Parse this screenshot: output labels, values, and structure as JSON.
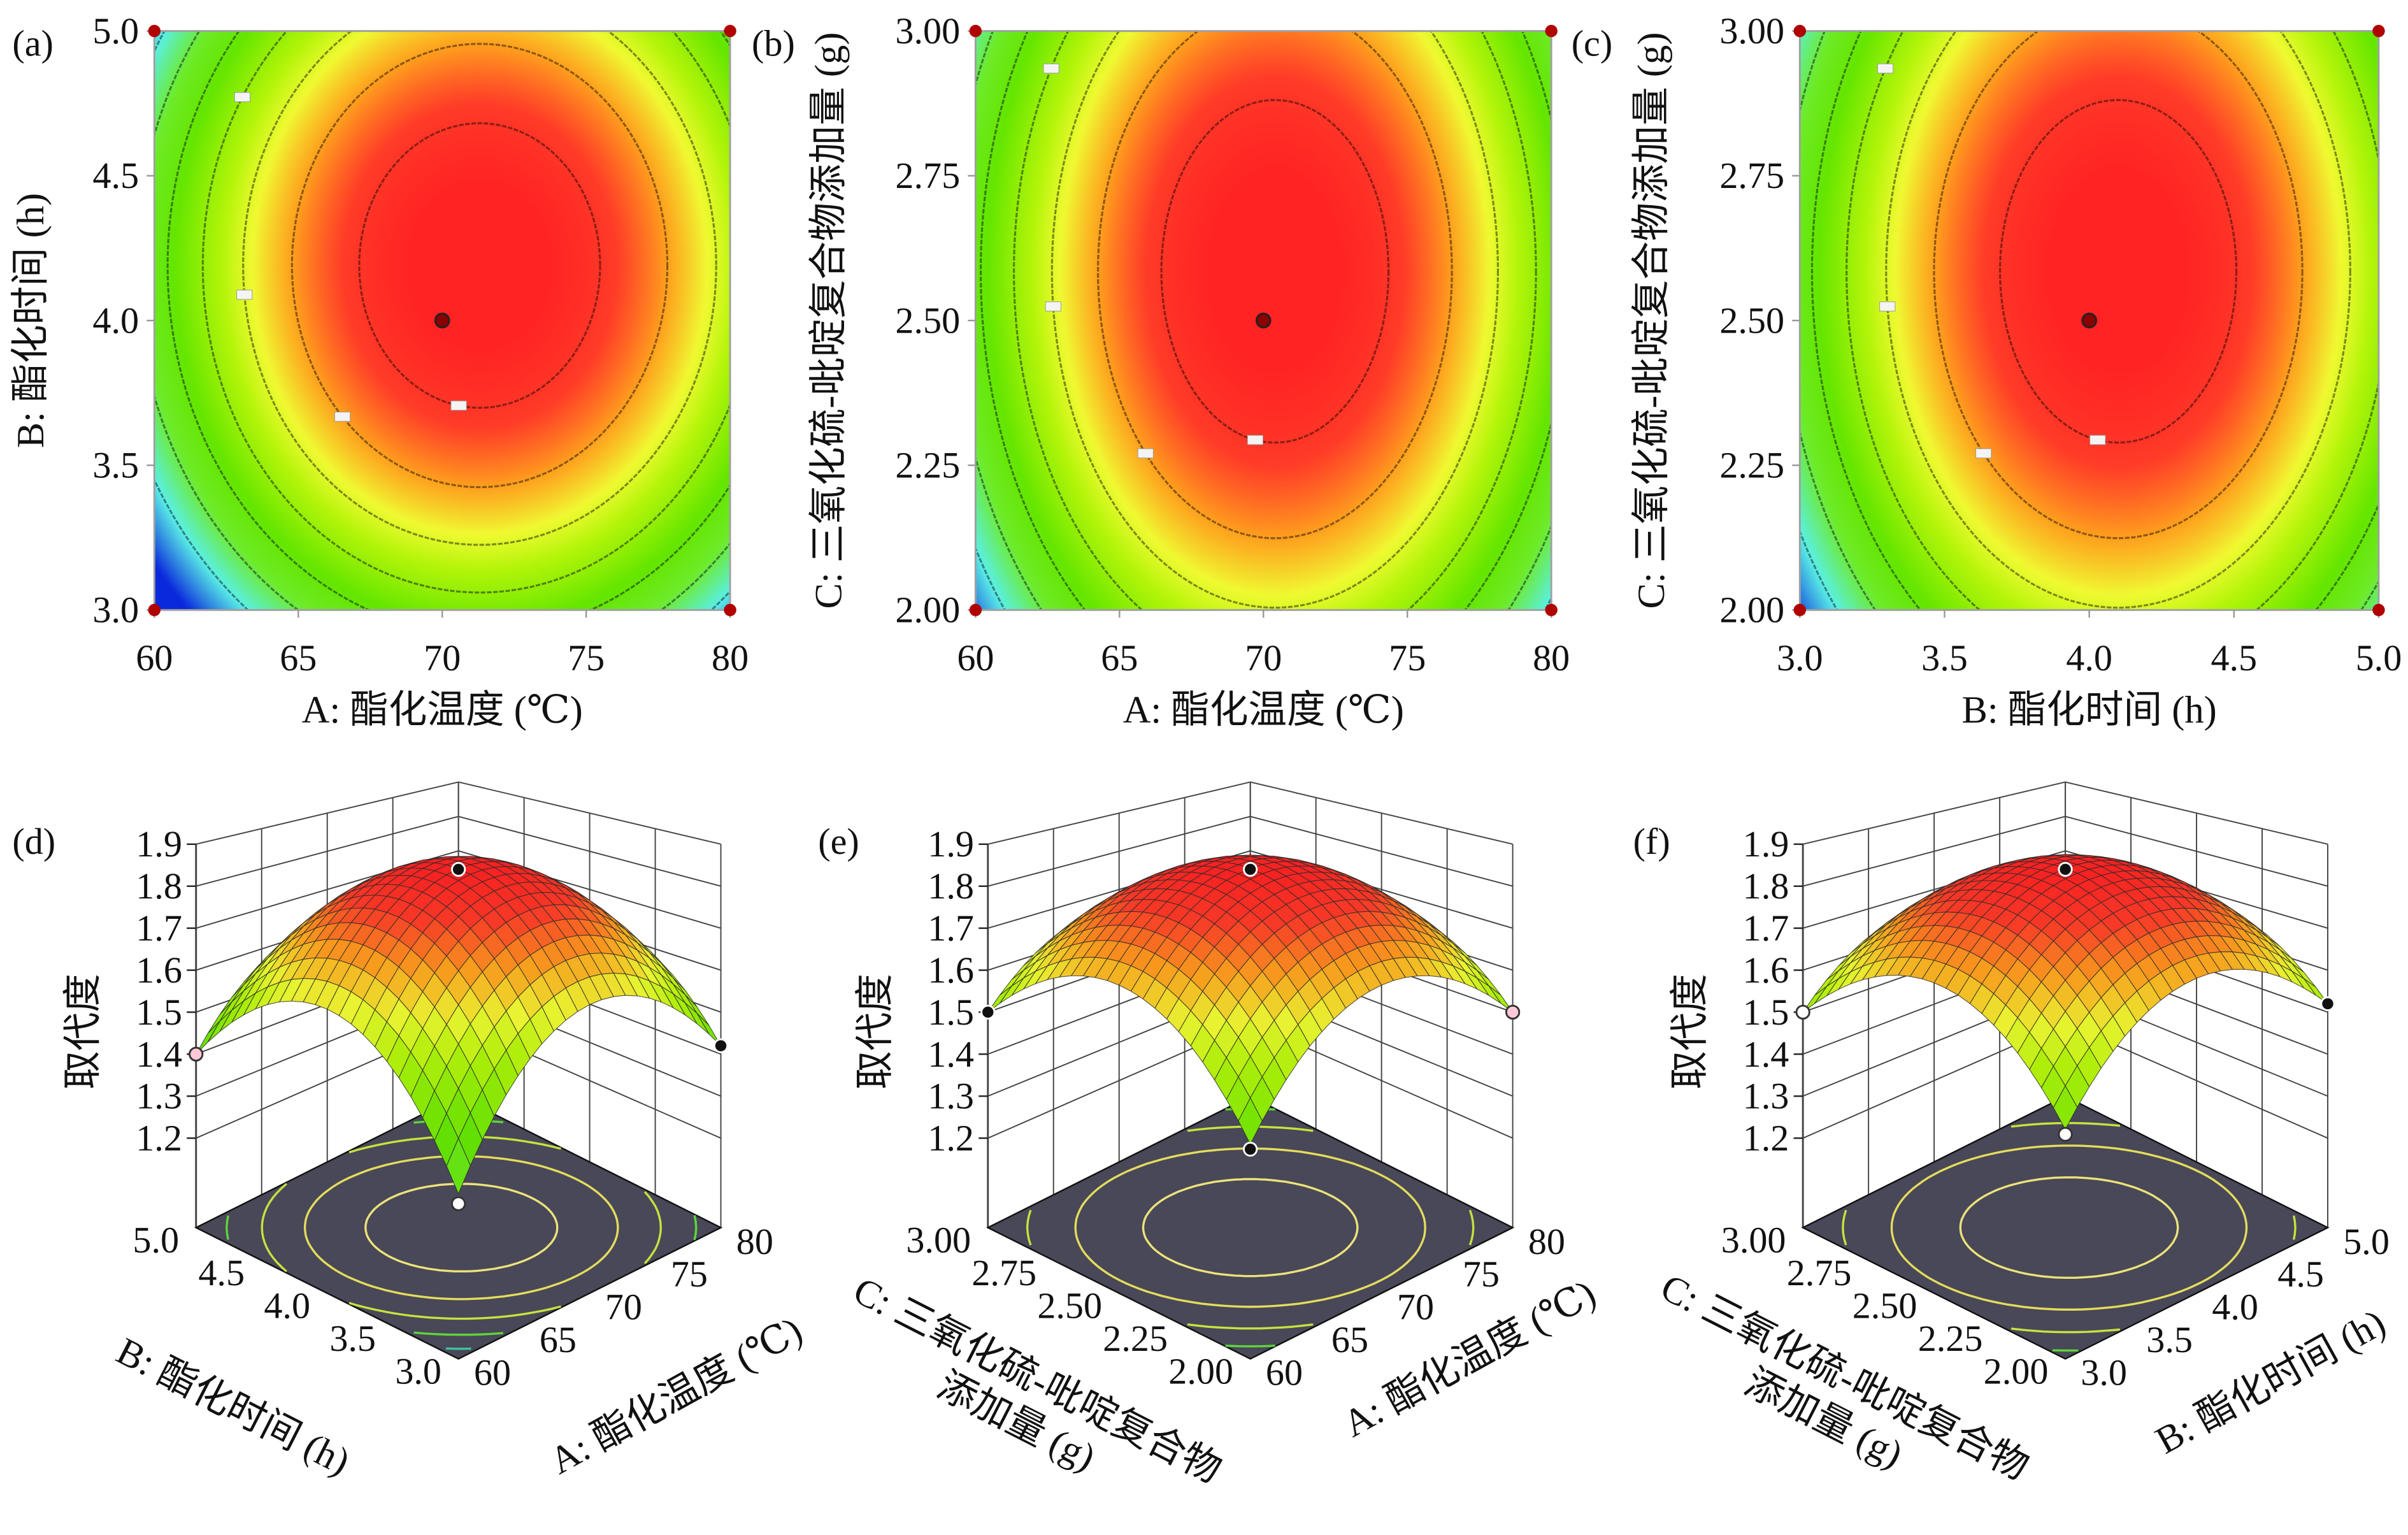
{
  "chart_data": [
    {
      "panel": "(a)",
      "type": "contour",
      "xlabel": "A: 酯化温度 (℃)",
      "ylabel": "B: 酯化时间 (h)",
      "xlim": [
        60,
        80
      ],
      "ylim": [
        3.0,
        5.0
      ],
      "xticks": [
        "60",
        "65",
        "70",
        "75",
        "80"
      ],
      "yticks": [
        "3.0",
        "3.5",
        "4.0",
        "4.5",
        "5.0"
      ],
      "peak": {
        "x": 71.3,
        "y": 4.19,
        "z": 1.87
      },
      "contour_levels": [
        1.8,
        1.7,
        1.6,
        1.5,
        1.4,
        1.3,
        1.2
      ],
      "center_point": {
        "x": 70,
        "y": 4.0
      },
      "colors": {
        "high": "#ff2a2a",
        "mid": "#f0fa32",
        "low": "#64e600",
        "min": "#0a28dc",
        "design_point": "#b00000"
      }
    },
    {
      "panel": "(b)",
      "type": "contour",
      "xlabel": "A: 酯化温度 (℃)",
      "ylabel": "C: 三氧化硫-吡啶复合物添加量 (g)",
      "xlim": [
        60,
        80
      ],
      "ylim": [
        2.0,
        3.0
      ],
      "xticks": [
        "60",
        "65",
        "70",
        "75",
        "80"
      ],
      "yticks": [
        "2.00",
        "2.25",
        "2.50",
        "2.75",
        "3.00"
      ],
      "peak": {
        "x": 70.4,
        "y": 2.585,
        "z": 1.87
      },
      "contour_levels": [
        1.8,
        1.7,
        1.6,
        1.5,
        1.4,
        1.3,
        1.2
      ],
      "center_point": {
        "x": 70,
        "y": 2.5
      },
      "colors": {
        "high": "#ff2a2a",
        "mid": "#f0fa32",
        "low": "#64e600",
        "min": "#0a28dc",
        "design_point": "#b00000"
      }
    },
    {
      "panel": "(c)",
      "type": "contour",
      "xlabel": "B: 酯化时间 (h)",
      "ylabel": "C: 三氧化硫-吡啶复合物添加量 (g)",
      "xlim": [
        3.0,
        5.0
      ],
      "ylim": [
        2.0,
        3.0
      ],
      "xticks": [
        "3.0",
        "3.5",
        "4.0",
        "4.5",
        "5.0"
      ],
      "yticks": [
        "2.00",
        "2.25",
        "2.50",
        "2.75",
        "3.00"
      ],
      "peak": {
        "x": 4.1,
        "y": 2.585,
        "z": 1.87
      },
      "contour_levels": [
        1.8,
        1.7,
        1.6,
        1.5,
        1.4,
        1.3,
        1.2
      ],
      "center_point": {
        "x": 4.0,
        "y": 2.5
      },
      "colors": {
        "high": "#ff2a2a",
        "mid": "#f0fa32",
        "low": "#64e600",
        "min": "#0a28dc",
        "design_point": "#b00000"
      }
    },
    {
      "panel": "(d)",
      "type": "surface",
      "zlabel": "取代度",
      "zticks": [
        "1.2",
        "1.3",
        "1.4",
        "1.5",
        "1.6",
        "1.7",
        "1.8",
        "1.9"
      ],
      "left_axis": {
        "title_lines": [
          "B: 酯化时间 (h)"
        ],
        "ticks_front_to_corner": [
          "3.0",
          "3.5",
          "4.0",
          "4.5",
          "5.0"
        ]
      },
      "right_axis": {
        "title_lines": [
          "A: 酯化温度 (℃)"
        ],
        "ticks_front_to_corner": [
          "60",
          "65",
          "70",
          "75",
          "80"
        ]
      },
      "peak_value": 1.86,
      "corner_values": {
        "front": 1.32,
        "left": 1.4,
        "right": 1.42
      },
      "design_points": [
        {
          "position": "center",
          "value": 1.84,
          "color": "#111111"
        },
        {
          "position": "front",
          "value": 1.3,
          "color": "#ffffff"
        },
        {
          "position": "left",
          "value": 1.4,
          "color": "#ffc8d8"
        },
        {
          "position": "right",
          "value": 1.42,
          "color": "#111111"
        }
      ]
    },
    {
      "panel": "(e)",
      "type": "surface",
      "zlabel": "取代度",
      "zticks": [
        "1.2",
        "1.3",
        "1.4",
        "1.5",
        "1.6",
        "1.7",
        "1.8",
        "1.9"
      ],
      "left_axis": {
        "title_lines": [
          "C: 三氧化硫-吡啶复合物",
          "添加量 (g)"
        ],
        "ticks_front_to_corner": [
          "2.00",
          "2.25",
          "2.50",
          "2.75",
          "3.00"
        ]
      },
      "right_axis": {
        "title_lines": [
          "A: 酯化温度 (℃)"
        ],
        "ticks_front_to_corner": [
          "60",
          "65",
          "70",
          "75",
          "80"
        ]
      },
      "peak_value": 1.86,
      "corner_values": {
        "front": 1.42,
        "left": 1.5,
        "right": 1.5
      },
      "design_points": [
        {
          "position": "center",
          "value": 1.84,
          "color": "#111111"
        },
        {
          "position": "front",
          "value": 1.41,
          "color": "#111111"
        },
        {
          "position": "left",
          "value": 1.5,
          "color": "#111111"
        },
        {
          "position": "right",
          "value": 1.5,
          "color": "#ffc8d8"
        }
      ]
    },
    {
      "panel": "(f)",
      "type": "surface",
      "zlabel": "取代度",
      "zticks": [
        "1.2",
        "1.3",
        "1.4",
        "1.5",
        "1.6",
        "1.7",
        "1.8",
        "1.9"
      ],
      "left_axis": {
        "title_lines": [
          "C: 三氧化硫-吡啶复合物",
          "添加量 (g)"
        ],
        "ticks_front_to_corner": [
          "2.00",
          "2.25",
          "2.50",
          "2.75",
          "3.00"
        ]
      },
      "right_axis": {
        "title_lines": [
          "B: 酯化时间 (h)"
        ],
        "ticks_front_to_corner": [
          "3.0",
          "3.5",
          "4.0",
          "4.5",
          "5.0"
        ]
      },
      "peak_value": 1.86,
      "corner_values": {
        "front": 1.45,
        "left": 1.5,
        "right": 1.52
      },
      "design_points": [
        {
          "position": "center",
          "value": 1.84,
          "color": "#111111"
        },
        {
          "position": "front",
          "value": 1.44,
          "color": "#ffffff"
        },
        {
          "position": "left",
          "value": 1.5,
          "color": "#ffffff"
        },
        {
          "position": "right",
          "value": 1.52,
          "color": "#111111"
        }
      ]
    }
  ]
}
